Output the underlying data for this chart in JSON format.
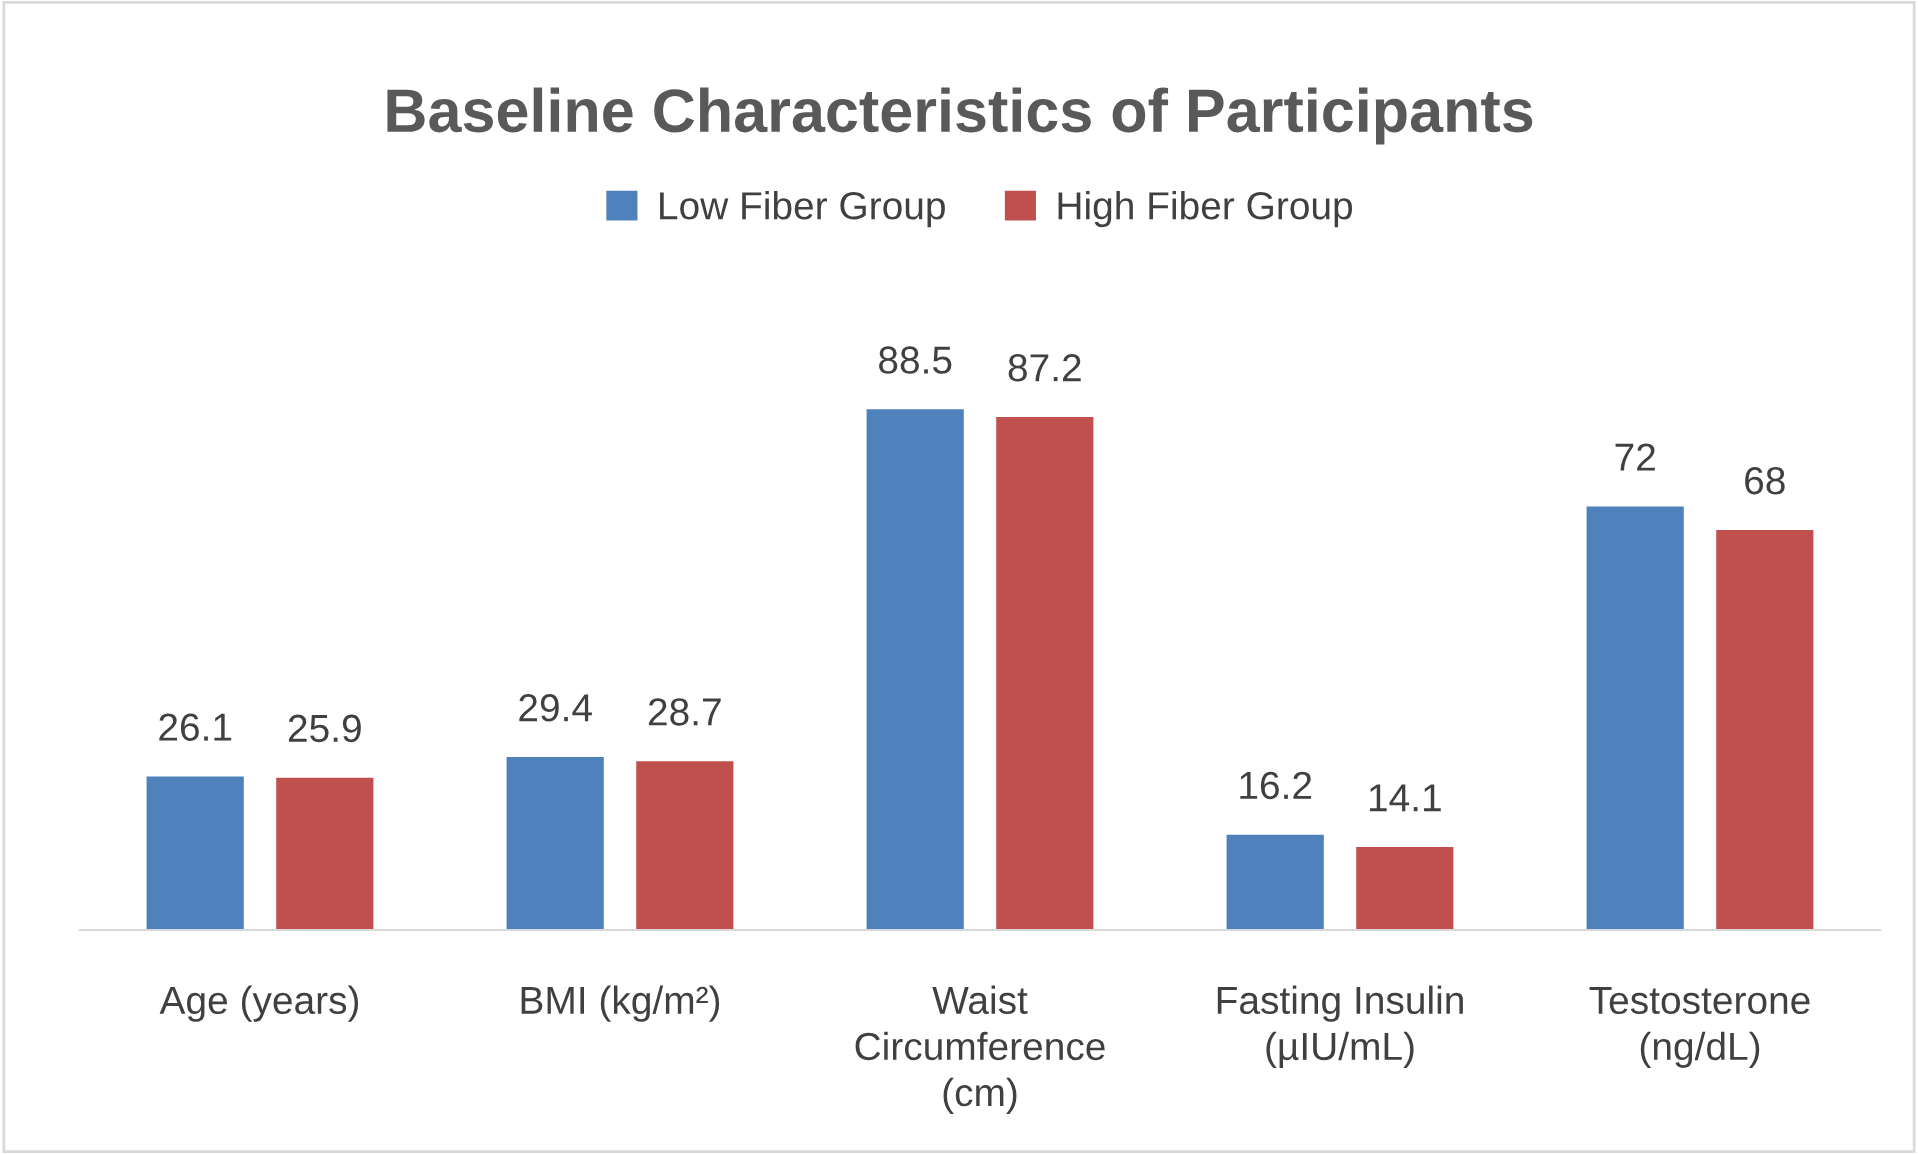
{
  "chart_data": {
    "type": "bar",
    "title": "Baseline Characteristics of Participants",
    "categories": [
      "Age (years)",
      "BMI (kg/m²)",
      "Waist\nCircumference\n(cm)",
      "Fasting Insulin\n(µIU/mL)",
      "Testosterone\n(ng/dL)"
    ],
    "series": [
      {
        "name": "Low Fiber Group",
        "color": "#4f81bd",
        "values": [
          26.1,
          29.4,
          88.5,
          16.2,
          72
        ]
      },
      {
        "name": "High Fiber Group",
        "color": "#c0504d",
        "values": [
          25.9,
          28.7,
          87.2,
          14.1,
          68
        ]
      }
    ],
    "data_labels": true,
    "legend": "top"
  }
}
